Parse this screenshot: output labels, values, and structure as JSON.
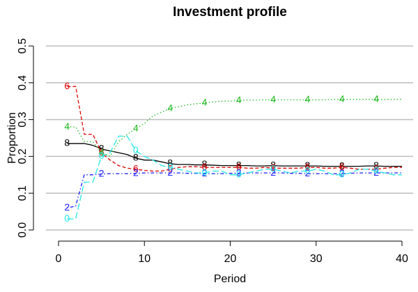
{
  "chart_data": {
    "type": "line",
    "title": "Investment profile",
    "x_label": "Period",
    "y_label": "Proportion",
    "x": [
      1,
      2,
      3,
      4,
      5,
      6,
      7,
      8,
      9,
      10,
      11,
      12,
      13,
      14,
      15,
      16,
      17,
      18,
      19,
      20,
      21,
      22,
      23,
      24,
      25,
      26,
      27,
      28,
      29,
      30,
      31,
      32,
      33,
      34,
      35,
      36,
      37,
      38,
      39,
      40
    ],
    "series": [
      {
        "marker": "8",
        "color": "#000000",
        "dash": "none",
        "values": [
          0.235,
          0.235,
          0.235,
          0.23,
          0.22,
          0.215,
          0.21,
          0.205,
          0.195,
          0.19,
          0.19,
          0.185,
          0.18,
          0.178,
          0.178,
          0.177,
          0.177,
          0.176,
          0.175,
          0.175,
          0.175,
          0.175,
          0.174,
          0.174,
          0.175,
          0.174,
          0.174,
          0.174,
          0.174,
          0.174,
          0.173,
          0.173,
          0.173,
          0.173,
          0.173,
          0.174,
          0.174,
          0.173,
          0.173,
          0.173
        ]
      },
      {
        "marker": "6",
        "color": "#df0000",
        "dash": "5,3",
        "values": [
          0.39,
          0.39,
          0.26,
          0.26,
          0.21,
          0.19,
          0.175,
          0.168,
          0.165,
          0.162,
          0.16,
          0.16,
          0.165,
          0.17,
          0.172,
          0.172,
          0.17,
          0.17,
          0.17,
          0.17,
          0.17,
          0.168,
          0.168,
          0.17,
          0.168,
          0.168,
          0.168,
          0.168,
          0.17,
          0.17,
          0.168,
          0.168,
          0.17,
          0.168,
          0.165,
          0.165,
          0.165,
          0.168,
          0.17,
          0.17
        ]
      },
      {
        "marker": "4",
        "color": "#22bb22",
        "dash": "1.5,3",
        "values": [
          0.28,
          0.28,
          0.24,
          0.24,
          0.21,
          0.2,
          0.24,
          0.26,
          0.275,
          0.29,
          0.31,
          0.32,
          0.33,
          0.335,
          0.34,
          0.343,
          0.345,
          0.348,
          0.35,
          0.35,
          0.352,
          0.353,
          0.353,
          0.354,
          0.354,
          0.354,
          0.354,
          0.354,
          0.354,
          0.354,
          0.354,
          0.355,
          0.355,
          0.355,
          0.355,
          0.355,
          0.355,
          0.355,
          0.355,
          0.355
        ]
      },
      {
        "marker": "2",
        "color": "#1a1aff",
        "dash": "1.5,3,5,3",
        "values": [
          0.06,
          0.065,
          0.15,
          0.15,
          0.152,
          0.153,
          0.153,
          0.153,
          0.154,
          0.155,
          0.155,
          0.155,
          0.155,
          0.155,
          0.154,
          0.154,
          0.153,
          0.153,
          0.153,
          0.154,
          0.154,
          0.155,
          0.155,
          0.155,
          0.155,
          0.155,
          0.154,
          0.154,
          0.153,
          0.153,
          0.153,
          0.153,
          0.153,
          0.154,
          0.155,
          0.155,
          0.155,
          0.155,
          0.155,
          0.155
        ]
      },
      {
        "marker": "0",
        "color": "#22e6e6",
        "dash": "9,4",
        "values": [
          0.03,
          0.03,
          0.13,
          0.13,
          0.2,
          0.21,
          0.255,
          0.255,
          0.215,
          0.2,
          0.19,
          0.175,
          0.17,
          0.165,
          0.16,
          0.155,
          0.155,
          0.16,
          0.16,
          0.15,
          0.15,
          0.155,
          0.16,
          0.165,
          0.165,
          0.16,
          0.155,
          0.16,
          0.16,
          0.165,
          0.16,
          0.15,
          0.15,
          0.155,
          0.165,
          0.165,
          0.16,
          0.155,
          0.15,
          0.15
        ]
      }
    ],
    "marker_every": 4,
    "xlim": [
      0,
      40
    ],
    "xticks": [
      0,
      10,
      20,
      30,
      40
    ],
    "ylim": [
      0,
      0.5
    ],
    "yticks": [
      {
        "value": 0,
        "label": "0.0"
      },
      0.1,
      0.2,
      0.3,
      0.4,
      0.5
    ],
    "grid": true
  }
}
